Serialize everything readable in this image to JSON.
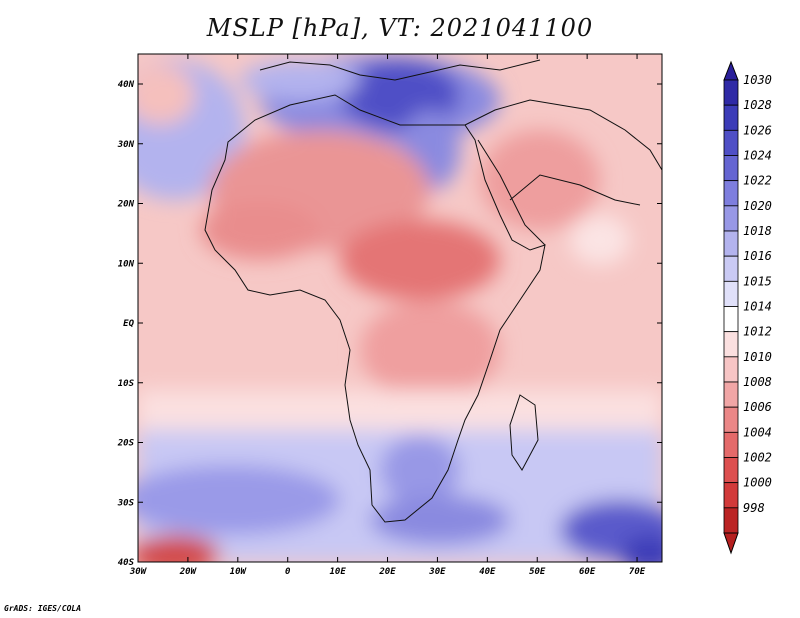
{
  "title": "MSLP [hPa], VT: 2021041100",
  "credit": "GrADS: IGES/COLA",
  "map": {
    "lon_range": [
      -30,
      75
    ],
    "lat_range": [
      -40,
      45
    ],
    "lon_ticks": [
      "30W",
      "20W",
      "10W",
      "0",
      "10E",
      "20E",
      "30E",
      "40E",
      "50E",
      "60E",
      "70E"
    ],
    "lat_ticks": [
      "40N",
      "30N",
      "20N",
      "10N",
      "EQ",
      "10S",
      "20S",
      "30S",
      "40S"
    ]
  },
  "colorbar": {
    "levels": [
      "1030",
      "1028",
      "1026",
      "1024",
      "1022",
      "1020",
      "1018",
      "1016",
      "1015",
      "1014",
      "1012",
      "1010",
      "1008",
      "1006",
      "1004",
      "1002",
      "1000",
      "998"
    ],
    "colors": [
      "#2f2aa6",
      "#3c3cb8",
      "#4f4fc6",
      "#6565d2",
      "#7e7ede",
      "#9898e6",
      "#b3b3ee",
      "#cacaf4",
      "#e0e0f9",
      "#ffffff",
      "#fbe0e0",
      "#f7c5c5",
      "#f1a6a6",
      "#eb8787",
      "#e46a6a",
      "#dd4f4f",
      "#d23a3a",
      "#bb2424"
    ],
    "arrow_top_color": "#2a1f9a",
    "arrow_bottom_color": "#b51f1f"
  }
}
